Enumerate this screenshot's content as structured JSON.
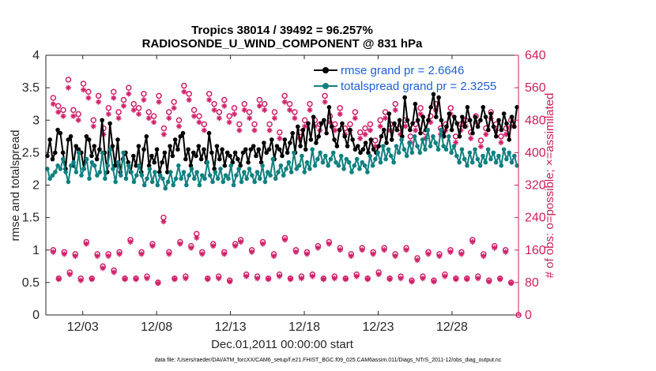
{
  "chart_data": {
    "type": "line",
    "title_line1": "Tropics 38014 / 39492 = 96.257%",
    "title_line2": "RADIOSONDE_U_WIND_COMPONENT @ 831 hPa",
    "xlabel": "Dec.01,2011 00:00:00 start",
    "ylabel": "rmse and totalspread",
    "ylabel_right": "# of obs: o=possible; ×=assimilated",
    "ylim": [
      0,
      4
    ],
    "ylim_right": [
      0,
      640
    ],
    "xlim": [
      0.5,
      32.5
    ],
    "y_ticks": [
      "0",
      "0.5",
      "1",
      "1.5",
      "2",
      "2.5",
      "3",
      "3.5",
      "4"
    ],
    "y_ticks_right": [
      "0",
      "80",
      "160",
      "240",
      "320",
      "400",
      "480",
      "560",
      "640"
    ],
    "x_ticks": [
      {
        "day": 3,
        "label": "12/03"
      },
      {
        "day": 8,
        "label": "12/08"
      },
      {
        "day": 13,
        "label": "12/13"
      },
      {
        "day": 18,
        "label": "12/18"
      },
      {
        "day": 23,
        "label": "12/23"
      },
      {
        "day": 28,
        "label": "12/28"
      }
    ],
    "series": [
      {
        "name": "rmse grand pr = 2.6646",
        "color": "#000000",
        "values": [
          2.45,
          2.7,
          2.4,
          2.5,
          2.85,
          2.8,
          2.5,
          2.25,
          2.7,
          2.75,
          2.3,
          2.6,
          2.55,
          2.5,
          2.25,
          2.75,
          2.7,
          2.45,
          2.6,
          2.4,
          2.55,
          3.0,
          2.5,
          2.2,
          2.95,
          2.6,
          2.3,
          2.7,
          2.2,
          2.4,
          2.5,
          2.35,
          2.2,
          2.45,
          2.3,
          2.6,
          2.2,
          2.55,
          2.75,
          2.3,
          2.45,
          2.35,
          2.55,
          2.2,
          2.35,
          2.5,
          2.2,
          2.6,
          2.45,
          2.7,
          2.55,
          2.75,
          2.8,
          2.4,
          2.55,
          2.3,
          2.5,
          2.45,
          2.6,
          2.4,
          2.55,
          2.35,
          2.8,
          2.5,
          2.25,
          2.6,
          2.4,
          2.55,
          2.3,
          2.5,
          2.45,
          2.35,
          2.5,
          2.4,
          2.3,
          2.5,
          2.55,
          2.35,
          2.55,
          2.6,
          2.45,
          2.55,
          2.35,
          2.65,
          2.5,
          2.55,
          2.7,
          2.4,
          2.6,
          2.55,
          2.45,
          2.7,
          2.5,
          2.65,
          2.8,
          2.5,
          2.9,
          2.6,
          2.85,
          2.55,
          2.95,
          2.7,
          3.05,
          2.65,
          2.75,
          2.95,
          3.0,
          2.8,
          3.2,
          2.9,
          2.7,
          2.6,
          2.85,
          2.95,
          2.75,
          2.6,
          2.85,
          2.7,
          2.55,
          2.6,
          2.5,
          2.55,
          2.65,
          2.5,
          2.7,
          2.55,
          2.5,
          2.6,
          2.75,
          2.85,
          2.65,
          3.1,
          2.7,
          2.95,
          2.85,
          3.0,
          2.75,
          3.35,
          3.0,
          2.85,
          2.95,
          3.25,
          3.0,
          2.8,
          3.05,
          2.85,
          3.0,
          3.2,
          3.4,
          3.05,
          3.35,
          3.0,
          2.75,
          2.9,
          3.1,
          2.85,
          3.05,
          2.95,
          2.75,
          3.05,
          2.9,
          3.2,
          3.0,
          2.8,
          3.05,
          2.9,
          3.0,
          3.2,
          3.05,
          2.85,
          3.1,
          2.9,
          2.75,
          3.0,
          2.85,
          3.1,
          2.95,
          2.7,
          3.05,
          2.9,
          3.2
        ]
      },
      {
        "name": "totalspread grand pr = 2.3255",
        "color": "#118080",
        "values": [
          2.25,
          2.1,
          2.15,
          2.2,
          2.3,
          2.25,
          2.4,
          2.2,
          2.05,
          2.3,
          2.35,
          2.2,
          2.5,
          2.15,
          2.25,
          2.4,
          2.1,
          2.35,
          2.3,
          2.15,
          2.2,
          2.5,
          2.1,
          2.3,
          2.55,
          2.25,
          2.05,
          2.35,
          2.15,
          2.5,
          2.1,
          2.3,
          2.2,
          2.05,
          2.15,
          2.3,
          2.15,
          2.0,
          2.1,
          2.25,
          2.05,
          2.2,
          2.0,
          2.15,
          2.1,
          1.95,
          2.05,
          2.2,
          2.0,
          2.1,
          2.3,
          2.1,
          2.2,
          2.0,
          2.15,
          2.25,
          2.1,
          2.2,
          2.0,
          2.15,
          2.1,
          2.35,
          2.15,
          2.05,
          2.2,
          2.1,
          2.25,
          2.05,
          2.15,
          2.1,
          2.3,
          2.0,
          2.15,
          2.25,
          2.05,
          2.2,
          2.1,
          2.25,
          2.15,
          2.05,
          2.2,
          2.1,
          2.3,
          2.05,
          2.2,
          2.15,
          2.4,
          2.1,
          2.2,
          2.3,
          2.15,
          2.25,
          2.35,
          2.2,
          2.5,
          2.25,
          2.3,
          2.45,
          2.2,
          2.35,
          2.25,
          2.55,
          2.3,
          2.4,
          2.5,
          2.35,
          2.45,
          2.3,
          2.4,
          2.5,
          2.35,
          2.3,
          2.45,
          2.25,
          2.4,
          2.35,
          2.2,
          2.3,
          2.4,
          2.25,
          2.35,
          2.3,
          2.2,
          2.45,
          2.3,
          2.4,
          2.5,
          2.35,
          2.6,
          2.4,
          2.55,
          2.45,
          2.35,
          2.6,
          2.5,
          2.7,
          2.55,
          2.45,
          2.65,
          2.5,
          2.75,
          2.6,
          2.5,
          2.7,
          2.55,
          2.85,
          2.6,
          2.75,
          2.65,
          2.55,
          2.85,
          2.6,
          2.55,
          2.75,
          2.5,
          2.6,
          2.45,
          2.35,
          2.55,
          2.4,
          2.3,
          2.5,
          2.35,
          2.55,
          2.4,
          2.3,
          2.45,
          2.35,
          2.55,
          2.4,
          2.5,
          2.35,
          2.45,
          2.3,
          2.55,
          2.4,
          2.5,
          2.35,
          2.45,
          2.3
        ]
      }
    ],
    "obs_possible": [
      160,
      90,
      155,
      105,
      150,
      90,
      180,
      90,
      150,
      120,
      150,
      110,
      155,
      90,
      185,
      90,
      155,
      95,
      175,
      80,
      240,
      155,
      90,
      180,
      95,
      170,
      200,
      155,
      90,
      175,
      95,
      155,
      85,
      175,
      185,
      100,
      160,
      95,
      180,
      90,
      150,
      100,
      190,
      90,
      160,
      95,
      155,
      100,
      170,
      90,
      180,
      95,
      165,
      90,
      150,
      100,
      165,
      90,
      155,
      105,
      165,
      90,
      150,
      95,
      165,
      85,
      140,
      95,
      155,
      85,
      150,
      100,
      160,
      90,
      155,
      90,
      185,
      95,
      150,
      85,
      170,
      90,
      160,
      80
    ],
    "obs_assimilated": [
      155,
      88,
      150,
      100,
      145,
      85,
      175,
      88,
      145,
      115,
      145,
      105,
      150,
      88,
      180,
      88,
      150,
      90,
      170,
      78,
      230,
      150,
      88,
      175,
      90,
      165,
      190,
      150,
      88,
      170,
      90,
      150,
      82,
      170,
      180,
      95,
      155,
      90,
      175,
      88,
      145,
      95,
      185,
      88,
      155,
      90,
      150,
      95,
      165,
      88,
      175,
      90,
      160,
      88,
      145,
      95,
      160,
      88,
      150,
      100,
      160,
      88,
      145,
      90,
      160,
      82,
      135,
      90,
      150,
      82,
      145,
      95,
      155,
      88,
      150,
      88,
      180,
      90,
      145,
      82,
      165,
      88,
      155,
      78
    ],
    "obs_possible_upper": [
      535,
      515,
      505,
      580,
      505,
      495,
      570,
      550,
      480,
      540,
      460,
      510,
      550,
      500,
      530,
      560,
      520,
      510,
      545,
      500,
      490,
      540,
      460,
      500,
      525,
      480,
      565,
      545,
      505,
      490,
      470,
      545,
      520,
      500,
      530,
      490,
      510,
      470,
      520,
      500,
      470,
      530,
      520,
      470,
      500,
      450,
      540,
      520,
      500,
      450,
      480,
      520,
      480,
      470,
      540,
      490,
      470,
      510,
      460,
      470,
      500,
      450,
      460,
      470,
      430,
      480,
      500,
      470,
      520,
      460,
      480,
      440,
      470,
      510,
      450,
      490,
      520,
      460,
      470,
      510,
      440,
      470,
      480,
      450,
      490,
      430,
      460,
      500,
      470,
      440,
      460,
      480
    ],
    "obs_assimilated_upper": [
      520,
      500,
      490,
      560,
      490,
      480,
      555,
      535,
      465,
      525,
      445,
      495,
      535,
      485,
      515,
      545,
      505,
      495,
      530,
      485,
      475,
      525,
      445,
      485,
      510,
      465,
      550,
      530,
      490,
      475,
      455,
      530,
      505,
      485,
      515,
      475,
      495,
      455,
      505,
      485,
      455,
      515,
      505,
      455,
      485,
      435,
      525,
      505,
      485,
      435,
      465,
      505,
      465,
      455,
      525,
      475,
      455,
      495,
      445,
      455,
      485,
      435,
      445,
      455,
      415,
      465,
      485,
      455,
      505,
      445,
      465,
      425,
      455,
      495,
      435,
      475,
      505,
      445,
      455,
      495,
      425,
      455,
      465,
      435,
      475,
      415,
      445,
      485,
      455,
      425,
      445,
      465
    ],
    "obs_color": "#d0206a",
    "footer": "data file: /Users/raeder/DAI/ATM_forcXX/CAM6_setup/f.e21.FHIST_BGC.f09_025.CAM6assim.011/Diags_NTrS_2011-12/obs_diag_output.nc"
  }
}
